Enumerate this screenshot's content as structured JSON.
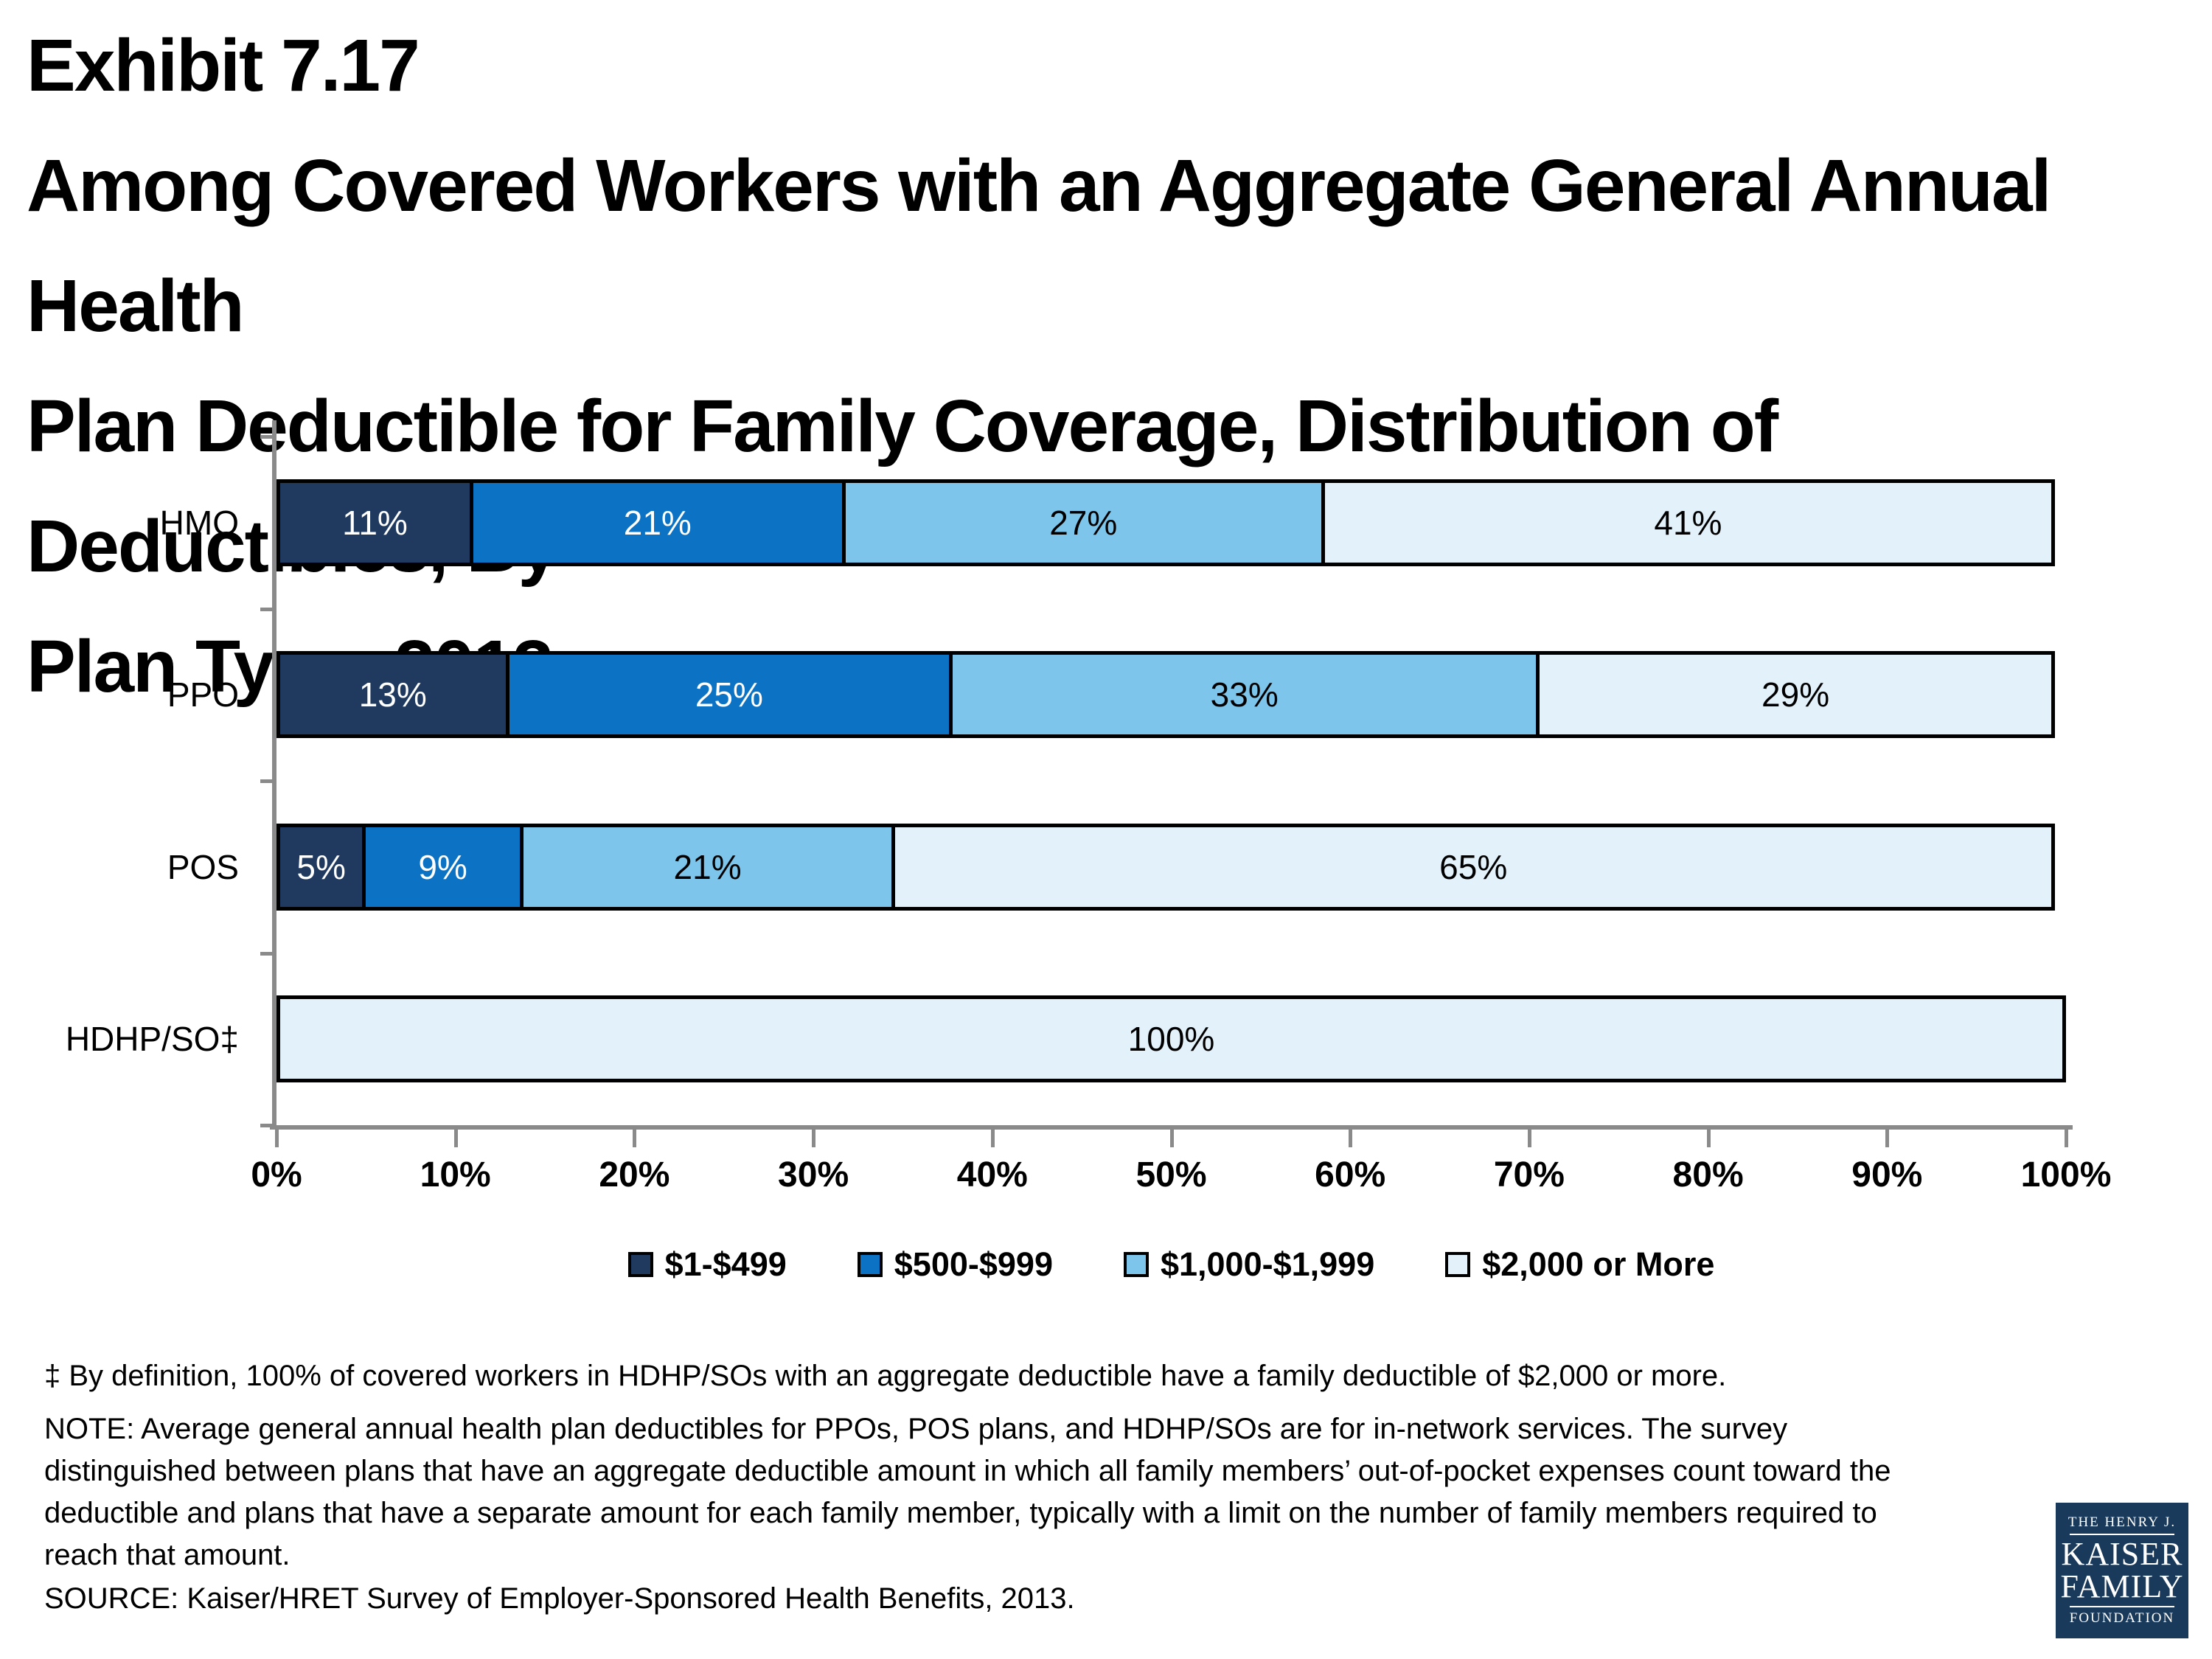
{
  "title": {
    "lines": [
      "Exhibit 7.17",
      "Among Covered Workers with an Aggregate General Annual Health",
      "Plan Deductible for Family Coverage, Distribution of Deductibles, By",
      "Plan Type, 2013"
    ]
  },
  "chart_data": {
    "type": "bar",
    "orientation": "horizontal",
    "stacked": true,
    "categories": [
      "HMO",
      "PPO",
      "POS",
      "HDHP/SO‡"
    ],
    "series": [
      {
        "name": "$1-$499",
        "color": "#1f3a5e",
        "label_color": "#ffffff",
        "values": [
          11,
          13,
          5,
          0
        ]
      },
      {
        "name": "$500-$999",
        "color": "#0b72c4",
        "label_color": "#ffffff",
        "values": [
          21,
          25,
          9,
          0
        ]
      },
      {
        "name": "$1,000-$1,999",
        "color": "#7dc5ea",
        "label_color": "#000000",
        "values": [
          27,
          33,
          21,
          0
        ]
      },
      {
        "name": "$2,000 or More",
        "color": "#e3f1fa",
        "label_color": "#000000",
        "values": [
          41,
          29,
          65,
          100
        ]
      }
    ],
    "data_label_suffix": "%",
    "x_axis": {
      "min": 0,
      "max": 100,
      "tick_step": 10,
      "tick_labels": [
        "0%",
        "10%",
        "20%",
        "30%",
        "40%",
        "50%",
        "60%",
        "70%",
        "80%",
        "90%",
        "100%"
      ]
    },
    "grid": false,
    "legend_position": "bottom",
    "axis_color": "#8a8a8a",
    "bar_border_color": "#000000"
  },
  "footnotes": {
    "dagger": "‡ By definition, 100% of covered workers in HDHP/SOs with an aggregate deductible have a family deductible of $2,000 or more.",
    "note": "NOTE: Average general annual health plan deductibles for PPOs, POS plans, and HDHP/SOs are for in-network services. The survey distinguished between plans that have an aggregate deductible amount in which all family members’ out-of-pocket expenses count toward the deductible and plans that have a separate amount for each family member, typically with a limit on the number of family members required to reach that amount.",
    "source": "SOURCE:  Kaiser/HRET Survey of Employer-Sponsored Health Benefits, 2013."
  },
  "logo": {
    "line1": "THE HENRY J.",
    "line2": "KAISER",
    "line3": "FAMILY",
    "line4": "FOUNDATION",
    "background": "#1a3a5c"
  }
}
